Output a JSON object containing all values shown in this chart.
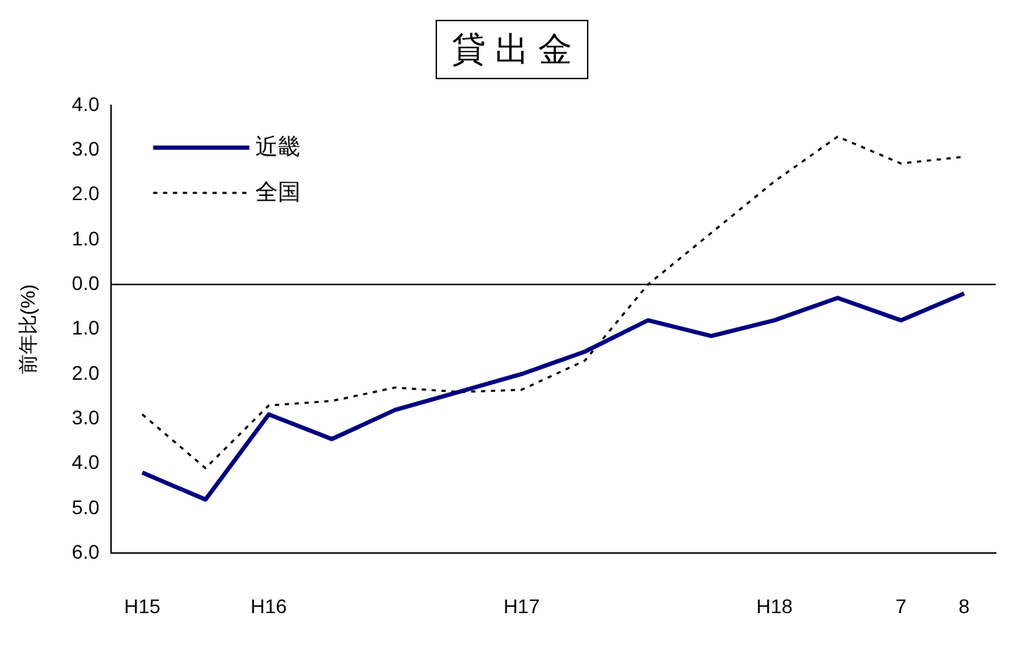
{
  "chart_data": {
    "type": "line",
    "title": "貸 出 金",
    "ylabel": "前年比(%)",
    "categories": [
      "H15",
      null,
      "H16",
      null,
      null,
      null,
      "H17",
      null,
      null,
      null,
      "H18",
      null,
      "7",
      "8"
    ],
    "series": [
      {
        "name": "近畿",
        "color": "#000080",
        "line_style": "solid",
        "values": [
          -4.2,
          -4.8,
          -2.9,
          -3.45,
          -2.8,
          -2.4,
          -2.0,
          -1.5,
          -0.8,
          -1.15,
          -0.8,
          -0.3,
          -0.8,
          -0.2
        ]
      },
      {
        "name": "全国",
        "color": "#000000",
        "line_style": "dotted",
        "values": [
          -2.9,
          -4.1,
          -2.7,
          -2.6,
          -2.3,
          -2.4,
          -2.35,
          -1.7,
          0.0,
          1.15,
          2.3,
          3.3,
          2.7,
          2.85
        ]
      }
    ],
    "ylim": [
      -6,
      4
    ],
    "yticks": [
      {
        "value": 4,
        "label": "4.0"
      },
      {
        "value": 3,
        "label": "3.0"
      },
      {
        "value": 2,
        "label": "2.0"
      },
      {
        "value": 1,
        "label": "1.0"
      },
      {
        "value": 0,
        "label": "0.0"
      },
      {
        "value": -1,
        "label": "1.0"
      },
      {
        "value": -2,
        "label": "2.0"
      },
      {
        "value": -3,
        "label": "3.0"
      },
      {
        "value": -4,
        "label": "4.0"
      },
      {
        "value": -5,
        "label": "5.0"
      },
      {
        "value": -6,
        "label": "6.0"
      }
    ],
    "ref_lines": [
      {
        "axis": "y",
        "value": 0,
        "label": null,
        "color": "#000000"
      }
    ],
    "grid": false,
    "legend": "top left",
    "marker": "none"
  }
}
